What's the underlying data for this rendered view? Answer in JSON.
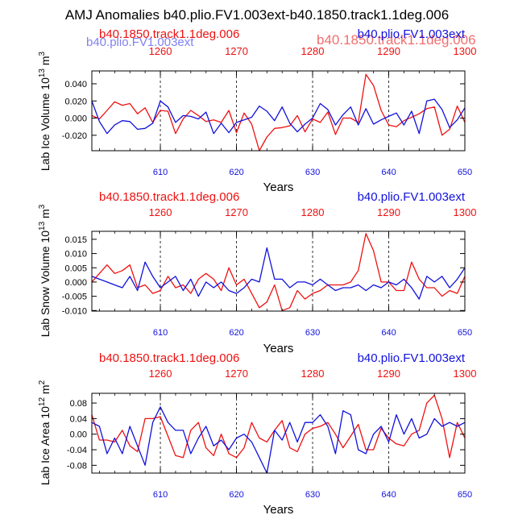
{
  "figure": {
    "title": "AMJ Anomalies b40.plio.FV1.003ext-b40.1850.track1.1deg.006"
  },
  "colors": {
    "red_series": "#ee1111",
    "blue_series": "#1111dd",
    "axis": "#000000"
  },
  "chart_data": [
    {
      "type": "line",
      "title": "",
      "xlabel": "Years",
      "ylabel": "Lab Ice Volume 10^13 m^3",
      "ylabel_main": "Lab Ice Volume 10",
      "ylabel_exp": "13",
      "ylabel_unit": " m",
      "ylabel_unit_exp": "3",
      "legend_left": "b40.1850.track1.1deg.006",
      "legend_right": "b40.plio.FV1.003ext",
      "legend_left_ghost": "b40.plio.FV1.003ext",
      "legend_right_ghost": "b40.1850.track1.1deg.006",
      "xlim": [
        601,
        650
      ],
      "ylim": [
        -0.038,
        0.055
      ],
      "yticks": [
        -0.02,
        0.0,
        0.02,
        0.04
      ],
      "ytick_labels": [
        "-0.020",
        "0.000",
        "0.020",
        "0.040"
      ],
      "bottom_ticks": [
        610,
        620,
        630,
        640,
        650
      ],
      "bottom_tick_labels": [
        "610",
        "620",
        "630",
        "640",
        "650"
      ],
      "top_ticks": [
        610,
        620,
        630,
        640,
        650
      ],
      "top_tick_labels": [
        "1260",
        "1270",
        "1280",
        "1290",
        "1300"
      ],
      "grid_x": [
        610,
        620,
        630,
        640
      ],
      "x": [
        601,
        602,
        603,
        604,
        605,
        606,
        607,
        608,
        609,
        610,
        611,
        612,
        613,
        614,
        615,
        616,
        617,
        618,
        619,
        620,
        621,
        622,
        623,
        624,
        625,
        626,
        627,
        628,
        629,
        630,
        631,
        632,
        633,
        634,
        635,
        636,
        637,
        638,
        639,
        640,
        641,
        642,
        643,
        644,
        645,
        646,
        647,
        648,
        649,
        650
      ],
      "series": [
        {
          "name": "b40.1850.track1.1deg.006",
          "color": "red",
          "values": [
            0.003,
            -0.001,
            0.009,
            0.019,
            0.015,
            0.017,
            0.005,
            0.012,
            -0.005,
            0.009,
            0.008,
            -0.018,
            -0.001,
            0.009,
            0.003,
            -0.004,
            -0.002,
            -0.005,
            0.009,
            -0.017,
            0.006,
            -0.007,
            -0.038,
            -0.022,
            -0.012,
            -0.011,
            -0.009,
            0.003,
            -0.016,
            -0.001,
            -0.005,
            0.007,
            -0.019,
            0.0,
            0.0,
            -0.005,
            0.051,
            0.038,
            0.009,
            -0.008,
            -0.01,
            -0.003,
            0.001,
            0.005,
            0.011,
            0.013,
            -0.02,
            -0.013,
            0.014,
            -0.005
          ]
        },
        {
          "name": "b40.plio.FV1.003ext",
          "color": "blue",
          "values": [
            0.02,
            -0.004,
            -0.018,
            -0.008,
            -0.003,
            -0.004,
            -0.013,
            -0.012,
            -0.006,
            0.02,
            0.013,
            -0.005,
            0.003,
            0.002,
            -0.001,
            0.007,
            -0.018,
            -0.006,
            -0.017,
            -0.005,
            -0.002,
            0.001,
            0.014,
            0.008,
            -0.003,
            0.013,
            -0.006,
            -0.016,
            -0.007,
            0.0,
            0.017,
            0.01,
            -0.008,
            0.004,
            0.013,
            -0.008,
            0.011,
            -0.007,
            -0.002,
            0.002,
            0.006,
            -0.008,
            0.008,
            -0.018,
            0.02,
            0.022,
            0.01,
            -0.011,
            -0.002,
            0.012
          ]
        }
      ]
    },
    {
      "type": "line",
      "title": "",
      "xlabel": "Years",
      "ylabel": "Lab Snow Volume 10^13 m^3",
      "ylabel_main": "Lab Snow Volume 10",
      "ylabel_exp": "13",
      "ylabel_unit": " m",
      "ylabel_unit_exp": "3",
      "legend_left": "b40.1850.track1.1deg.006",
      "legend_right": "b40.plio.FV1.003ext",
      "xlim": [
        601,
        650
      ],
      "ylim": [
        -0.0102,
        0.0178
      ],
      "yticks": [
        -0.01,
        -0.005,
        0.0,
        0.005,
        0.01,
        0.015
      ],
      "ytick_labels": [
        "-0.010",
        "-0.005",
        "0.000",
        "0.005",
        "0.010",
        "0.015"
      ],
      "bottom_ticks": [
        610,
        620,
        630,
        640,
        650
      ],
      "bottom_tick_labels": [
        "610",
        "620",
        "630",
        "640",
        "650"
      ],
      "top_ticks": [
        610,
        620,
        630,
        640,
        650
      ],
      "top_tick_labels": [
        "1260",
        "1270",
        "1280",
        "1290",
        "1300"
      ],
      "grid_x": [
        610,
        620,
        630,
        640
      ],
      "x": [
        601,
        602,
        603,
        604,
        605,
        606,
        607,
        608,
        609,
        610,
        611,
        612,
        613,
        614,
        615,
        616,
        617,
        618,
        619,
        620,
        621,
        622,
        623,
        624,
        625,
        626,
        627,
        628,
        629,
        630,
        631,
        632,
        633,
        634,
        635,
        636,
        637,
        638,
        639,
        640,
        641,
        642,
        643,
        644,
        645,
        646,
        647,
        648,
        649,
        650
      ],
      "series": [
        {
          "name": "b40.1850.track1.1deg.006",
          "color": "red",
          "values": [
            0.0,
            0.003,
            0.006,
            0.003,
            0.004,
            0.006,
            -0.002,
            -0.001,
            -0.004,
            -0.003,
            0.002,
            -0.002,
            -0.001,
            -0.004,
            0.001,
            0.003,
            0.001,
            -0.003,
            0.005,
            -0.001,
            0.001,
            -0.004,
            -0.009,
            -0.007,
            -0.001,
            -0.01,
            -0.009,
            -0.003,
            -0.006,
            -0.004,
            -0.003,
            -0.001,
            -0.001,
            -0.001,
            0.0,
            0.004,
            0.017,
            0.011,
            0.0,
            0.0,
            -0.003,
            -0.003,
            0.007,
            0.001,
            -0.002,
            -0.002,
            -0.005,
            -0.003,
            -0.004,
            0.002
          ]
        },
        {
          "name": "b40.plio.FV1.003ext",
          "color": "blue",
          "values": [
            0.002,
            0.001,
            0.0,
            -0.001,
            -0.002,
            0.002,
            -0.003,
            0.007,
            0.002,
            -0.002,
            0.0,
            0.002,
            -0.003,
            0.001,
            -0.005,
            0.0,
            -0.002,
            0.0,
            -0.003,
            -0.004,
            -0.002,
            0.001,
            0.0,
            0.012,
            0.001,
            0.001,
            -0.002,
            0.0,
            0.0,
            -0.001,
            0.001,
            -0.001,
            -0.003,
            -0.002,
            -0.002,
            -0.001,
            -0.003,
            -0.001,
            -0.002,
            0.0,
            -0.001,
            0.001,
            -0.002,
            -0.006,
            0.002,
            0.0,
            0.002,
            -0.002,
            0.001,
            0.005
          ]
        }
      ]
    },
    {
      "type": "line",
      "title": "",
      "xlabel": "Years",
      "ylabel": "Lab Ice Area 10^12 m^2",
      "ylabel_main": "Lab Ice Area 10",
      "ylabel_exp": "12",
      "ylabel_unit": " m",
      "ylabel_unit_exp": "2",
      "legend_left": "b40.1850.track1.1deg.006",
      "legend_right": "b40.plio.FV1.003ext",
      "xlim": [
        601,
        650
      ],
      "ylim": [
        -0.1,
        0.105
      ],
      "yticks": [
        -0.08,
        -0.04,
        0.0,
        0.04,
        0.08
      ],
      "ytick_labels": [
        "-0.08",
        "-0.04",
        "0.00",
        "0.04",
        "0.08"
      ],
      "bottom_ticks": [
        610,
        620,
        630,
        640,
        650
      ],
      "bottom_tick_labels": [
        "610",
        "620",
        "630",
        "640",
        "650"
      ],
      "top_ticks": [
        610,
        620,
        630,
        640,
        650
      ],
      "top_tick_labels": [
        "1260",
        "1270",
        "1280",
        "1290",
        "1300"
      ],
      "grid_x": [
        610,
        620,
        630,
        640
      ],
      "x": [
        601,
        602,
        603,
        604,
        605,
        606,
        607,
        608,
        609,
        610,
        611,
        612,
        613,
        614,
        615,
        616,
        617,
        618,
        619,
        620,
        621,
        622,
        623,
        624,
        625,
        626,
        627,
        628,
        629,
        630,
        631,
        632,
        633,
        634,
        635,
        636,
        637,
        638,
        639,
        640,
        641,
        642,
        643,
        644,
        645,
        646,
        647,
        648,
        649,
        650
      ],
      "series": [
        {
          "name": "b40.1850.track1.1deg.006",
          "color": "red",
          "values": [
            0.05,
            -0.015,
            -0.015,
            -0.02,
            0.01,
            -0.03,
            -0.045,
            0.04,
            0.04,
            0.045,
            -0.005,
            -0.055,
            -0.06,
            0.01,
            0.03,
            -0.035,
            -0.055,
            0.0,
            -0.05,
            -0.06,
            -0.035,
            0.03,
            -0.01,
            -0.02,
            0.01,
            0.035,
            -0.035,
            -0.045,
            0.0,
            0.015,
            0.02,
            0.03,
            0.0,
            -0.035,
            -0.005,
            0.025,
            -0.04,
            -0.04,
            0.015,
            -0.01,
            -0.025,
            -0.03,
            0.0,
            0.01,
            0.08,
            0.1,
            0.04,
            -0.06,
            0.03,
            -0.01
          ]
        },
        {
          "name": "b40.plio.FV1.003ext",
          "color": "blue",
          "values": [
            0.03,
            0.02,
            -0.05,
            -0.01,
            -0.05,
            0.02,
            -0.03,
            -0.08,
            0.03,
            0.07,
            0.03,
            0.01,
            0.01,
            -0.05,
            -0.01,
            0.02,
            -0.03,
            -0.015,
            -0.04,
            -0.01,
            0.0,
            -0.02,
            -0.06,
            -0.1,
            0.01,
            -0.015,
            0.03,
            -0.02,
            0.03,
            0.03,
            0.05,
            0.02,
            -0.05,
            0.06,
            0.05,
            -0.04,
            -0.05,
            0.0,
            0.02,
            -0.02,
            0.05,
            0.0,
            0.04,
            -0.01,
            0.0,
            0.04,
            0.02,
            0.03,
            0.02,
            0.03
          ]
        }
      ]
    }
  ]
}
